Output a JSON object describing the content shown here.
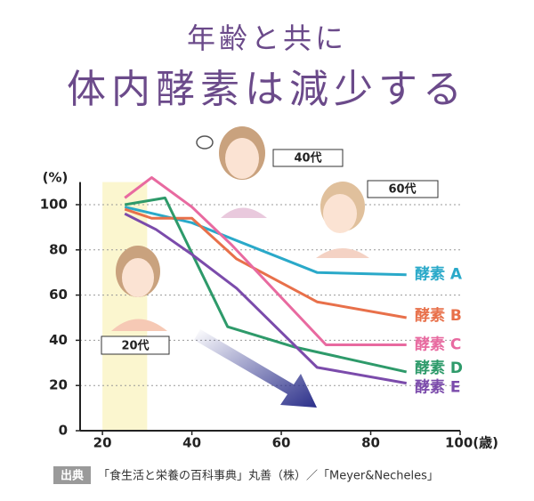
{
  "chart_data": {
    "type": "line",
    "title": "年齢と共に",
    "subtitle": "体内酵素は減少する",
    "y_label": "(%)",
    "xlim": [
      15,
      100
    ],
    "ylim": [
      0,
      110
    ],
    "xticks": [
      20,
      40,
      60,
      80,
      {
        "value": 100,
        "label": "100(歳)"
      }
    ],
    "yticks": [
      0,
      20,
      40,
      60,
      80,
      100
    ],
    "grid": true,
    "shaded_range": [
      20,
      30
    ],
    "series": [
      {
        "name": "酵素 A",
        "color": "#2aa9c9",
        "x": [
          25,
          40,
          68,
          88
        ],
        "values": [
          99,
          92,
          70,
          69
        ]
      },
      {
        "name": "酵素 B",
        "color": "#e8704a",
        "x": [
          25,
          31,
          40,
          50,
          68,
          88
        ],
        "values": [
          98,
          94,
          94,
          76,
          57,
          50
        ]
      },
      {
        "name": "酵素 C",
        "color": "#e86aa0",
        "x": [
          25,
          31,
          40,
          49,
          70,
          88
        ],
        "values": [
          103,
          112,
          99,
          82,
          38,
          38
        ]
      },
      {
        "name": "酵素 D",
        "color": "#2e9a6a",
        "x": [
          25,
          34,
          48,
          63,
          88
        ],
        "values": [
          100,
          103,
          46,
          37,
          26
        ]
      },
      {
        "name": "酵素 E",
        "color": "#7b4bab",
        "x": [
          25,
          32,
          40,
          50,
          68,
          88
        ],
        "values": [
          96,
          89,
          78,
          63,
          28,
          21
        ]
      }
    ],
    "annotations": [
      "40代",
      "60代",
      "20代"
    ],
    "source_badge": "出典",
    "source": "「食生活と栄養の百科事典」丸善（株）／「Meyer&Necheles」"
  }
}
